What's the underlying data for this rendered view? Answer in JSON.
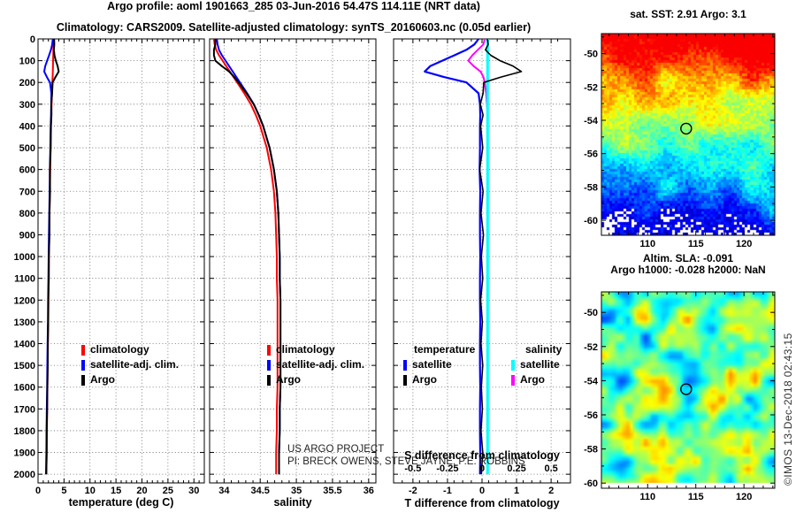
{
  "header": {
    "line1": "Argo profile: aoml 1901663_285 03-Jun-2016 54.47S 114.11E (NRT data)",
    "line2": "Climatology: CARS2009. Satellite-adjusted climatology: synTS_20160603.nc (0.05d earlier)"
  },
  "annotations": {
    "project_line1": "US ARGO PROJECT",
    "project_line2": "PI: BRECK OWENS, STEVE JAYNE, P.E. ROBBINS",
    "watermark": "©IMOS 13-Dec-2018 02:43:15"
  },
  "chart_data": [
    {
      "type": "line",
      "name": "temperature-profile",
      "xlabel": "temperature (deg C)",
      "ylabel": "",
      "xlim": [
        0,
        32
      ],
      "ylim": [
        0,
        2040
      ],
      "xticks": [
        0,
        5,
        10,
        15,
        20,
        25,
        30
      ],
      "yticks": [
        0,
        100,
        200,
        300,
        400,
        500,
        600,
        700,
        800,
        900,
        1000,
        1100,
        1200,
        1300,
        1400,
        1500,
        1600,
        1700,
        1800,
        1900,
        2000
      ],
      "x_minor_step": 1,
      "grid": true,
      "legend_position": "inside-lower-left",
      "depth": [
        0,
        25,
        50,
        75,
        100,
        125,
        150,
        175,
        200,
        250,
        300,
        350,
        400,
        500,
        600,
        700,
        800,
        900,
        1000,
        1100,
        1200,
        1300,
        1400,
        1500,
        1600,
        1700,
        1800,
        1900,
        2000
      ],
      "series": [
        {
          "name": "climatology",
          "color": "#ff0000",
          "values": [
            2.95,
            2.95,
            2.94,
            2.92,
            2.9,
            2.88,
            2.85,
            2.8,
            2.75,
            2.67,
            2.6,
            2.55,
            2.5,
            2.42,
            2.35,
            2.28,
            2.22,
            2.16,
            2.1,
            2.05,
            2.0,
            1.95,
            1.9,
            1.85,
            1.8,
            1.75,
            1.7,
            1.65,
            1.6
          ]
        },
        {
          "name": "satellite-adj. clim.",
          "color": "#0000ff",
          "values": [
            2.85,
            2.73,
            2.49,
            2.12,
            1.75,
            1.38,
            1.19,
            1.7,
            2.3,
            2.57,
            2.54,
            2.5,
            2.44,
            2.36,
            2.28,
            2.23,
            2.16,
            2.1,
            2.05,
            1.99,
            1.94,
            1.9,
            1.84,
            1.79,
            1.75,
            1.69,
            1.64,
            1.6,
            1.54
          ]
        },
        {
          "name": "Argo",
          "color": "#000000",
          "values": [
            3.1,
            3.13,
            3.04,
            3.17,
            3.42,
            3.78,
            3.99,
            3.35,
            2.8,
            2.7,
            2.55,
            2.58,
            2.46,
            2.44,
            2.28,
            2.31,
            2.19,
            2.2,
            2.08,
            2.07,
            1.96,
            1.96,
            1.87,
            1.87,
            1.78,
            1.76,
            1.67,
            1.67,
            1.58
          ]
        }
      ]
    },
    {
      "type": "line",
      "name": "salinity-profile",
      "xlabel": "salinity",
      "ylabel": "",
      "xlim": [
        33.8,
        36.1
      ],
      "ylim": [
        0,
        2040
      ],
      "xticks": [
        34,
        34.5,
        35,
        35.5,
        36
      ],
      "yticks": [
        0,
        100,
        200,
        300,
        400,
        500,
        600,
        700,
        800,
        900,
        1000,
        1100,
        1200,
        1300,
        1400,
        1500,
        1600,
        1700,
        1800,
        1900,
        2000
      ],
      "x_minor_step": 0.1,
      "grid": true,
      "legend_position": "inside-lower-left",
      "depth": [
        0,
        25,
        50,
        75,
        100,
        125,
        150,
        175,
        200,
        250,
        300,
        350,
        400,
        500,
        600,
        700,
        800,
        900,
        1000,
        1100,
        1200,
        1300,
        1400,
        1500,
        1600,
        1700,
        1800,
        1900,
        2000
      ],
      "series": [
        {
          "name": "climatology",
          "color": "#ff0000",
          "values": [
            33.86,
            33.87,
            33.89,
            33.93,
            33.98,
            34.03,
            34.08,
            34.13,
            34.18,
            34.28,
            34.37,
            34.44,
            34.5,
            34.59,
            34.65,
            34.69,
            34.71,
            34.72,
            34.73,
            34.73,
            34.74,
            34.74,
            34.74,
            34.74,
            34.74,
            34.73,
            34.73,
            34.72,
            34.72
          ]
        },
        {
          "name": "satellite-adj. clim.",
          "color": "#0000ff",
          "values": [
            33.9,
            33.91,
            33.93,
            33.97,
            34.02,
            34.07,
            34.12,
            34.17,
            34.22,
            34.32,
            34.41,
            34.48,
            34.54,
            34.63,
            34.69,
            34.73,
            34.75,
            34.76,
            34.77,
            34.77,
            34.78,
            34.78,
            34.78,
            34.78,
            34.78,
            34.77,
            34.77,
            34.76,
            34.76
          ]
        },
        {
          "name": "Argo",
          "color": "#000000",
          "values": [
            33.88,
            33.88,
            33.86,
            33.86,
            33.88,
            33.97,
            34.07,
            34.14,
            34.2,
            34.31,
            34.41,
            34.48,
            34.54,
            34.63,
            34.69,
            34.73,
            34.75,
            34.76,
            34.77,
            34.77,
            34.78,
            34.78,
            34.78,
            34.78,
            34.78,
            34.77,
            34.77,
            34.76,
            34.76
          ]
        }
      ]
    },
    {
      "type": "line",
      "name": "difference-profile",
      "xlabel": "T difference from climatology",
      "s_axis_label": "S difference from climatology",
      "ylabel": "",
      "xlim": [
        -2.56,
        2.56
      ],
      "ylim": [
        0,
        2040
      ],
      "xticks": [
        -2,
        -1,
        0,
        1,
        2
      ],
      "s_ticks": [
        -0.5,
        -0.25,
        0,
        0.25,
        0.5
      ],
      "s_scale_factor": 4,
      "yticks": [
        0,
        100,
        200,
        300,
        400,
        500,
        600,
        700,
        800,
        900,
        1000,
        1100,
        1200,
        1300,
        1400,
        1500,
        1600,
        1700,
        1800,
        1900,
        2000
      ],
      "x_minor_step": 0.25,
      "grid": true,
      "legend_position": "inside-lower-left",
      "draw_order": [
        0,
        3,
        2,
        1
      ],
      "depth": [
        0,
        25,
        50,
        75,
        100,
        125,
        150,
        175,
        200,
        250,
        300,
        350,
        400,
        500,
        600,
        700,
        800,
        900,
        1000,
        1100,
        1200,
        1300,
        1400,
        1500,
        1600,
        1700,
        1800,
        1900,
        2000
      ],
      "series": [
        {
          "name": "satellite",
          "group": "temperature",
          "axis": "T",
          "color": "#0000ff",
          "values": [
            -0.1,
            -0.22,
            -0.45,
            -0.8,
            -1.15,
            -1.5,
            -1.66,
            -1.1,
            -0.45,
            -0.1,
            -0.06,
            -0.05,
            -0.06,
            -0.06,
            -0.07,
            -0.05,
            -0.06,
            -0.06,
            -0.05,
            -0.06,
            -0.06,
            -0.05,
            -0.06,
            -0.06,
            -0.05,
            -0.06,
            -0.06,
            -0.05,
            -0.06
          ]
        },
        {
          "name": "Argo",
          "group": "temperature",
          "axis": "T",
          "color": "#000000",
          "values": [
            0.15,
            0.18,
            0.1,
            0.25,
            0.52,
            0.9,
            1.14,
            0.55,
            0.05,
            0.03,
            -0.05,
            0.03,
            -0.04,
            0.02,
            -0.07,
            0.03,
            -0.03,
            0.04,
            -0.02,
            0.02,
            -0.04,
            0.01,
            -0.03,
            0.02,
            -0.02,
            0.01,
            -0.03,
            0.02,
            -0.02
          ]
        },
        {
          "name": "satellite",
          "group": "salinity",
          "axis": "S",
          "color": "#00ffff",
          "values": [
            0.04,
            0.04,
            0.04,
            0.04,
            0.04,
            0.04,
            0.04,
            0.04,
            0.04,
            0.04,
            0.04,
            0.04,
            0.04,
            0.04,
            0.04,
            0.04,
            0.04,
            0.04,
            0.04,
            0.04,
            0.04,
            0.04,
            0.04,
            0.04,
            0.04,
            0.04,
            0.04,
            0.04,
            0.04
          ]
        },
        {
          "name": "Argo",
          "group": "salinity",
          "axis": "S",
          "color": "#ff00ff",
          "values": [
            0.02,
            0.01,
            -0.03,
            -0.07,
            -0.1,
            -0.06,
            -0.01,
            0.01,
            0.02,
            0.03,
            0.035,
            0.04,
            0.04,
            0.04,
            0.04,
            0.04,
            0.04,
            0.04,
            0.04,
            0.04,
            0.04,
            0.04,
            0.04,
            0.04,
            0.04,
            0.04,
            0.04,
            0.04,
            0.04
          ]
        }
      ]
    },
    {
      "type": "heatmap",
      "name": "sst-map",
      "title": "sat. SST: 2.91 Argo: 3.1",
      "xticks": [
        110,
        115,
        120
      ],
      "yticks": [
        -50,
        -52,
        -54,
        -56,
        -58,
        -60
      ],
      "lon_range": [
        105.2,
        123.2
      ],
      "lat_range": [
        -48.8,
        -60.9
      ],
      "colormap": "jet",
      "style": "blocky",
      "seed": 20160603,
      "marker": {
        "lon": 114,
        "lat": -54.5
      },
      "description": "Satellite SST field: red/orange warm water to the north, green mid-band, cyan/blue cold water to the south, white data gaps near the south-west edge. Black circle marks the float position."
    },
    {
      "type": "heatmap",
      "name": "sla-map",
      "title_line1": "Altim. SLA: -0.091",
      "title_line2": "Argo h1000: -0.028 h2000: NaN",
      "xticks": [
        110,
        115,
        120
      ],
      "yticks": [
        -50,
        -52,
        -54,
        -56,
        -58,
        -60
      ],
      "lon_range": [
        105.2,
        123.2
      ],
      "lat_range": [
        -48.8,
        -60.3
      ],
      "colormap": "jet",
      "style": "smooth",
      "seed": 1901663,
      "marker": {
        "lon": 114,
        "lat": -54.5
      },
      "description": "Altimetric sea-level anomaly field: predominantly green with smooth cyan lows and yellow/orange highs. Black circle marks the float position."
    }
  ]
}
